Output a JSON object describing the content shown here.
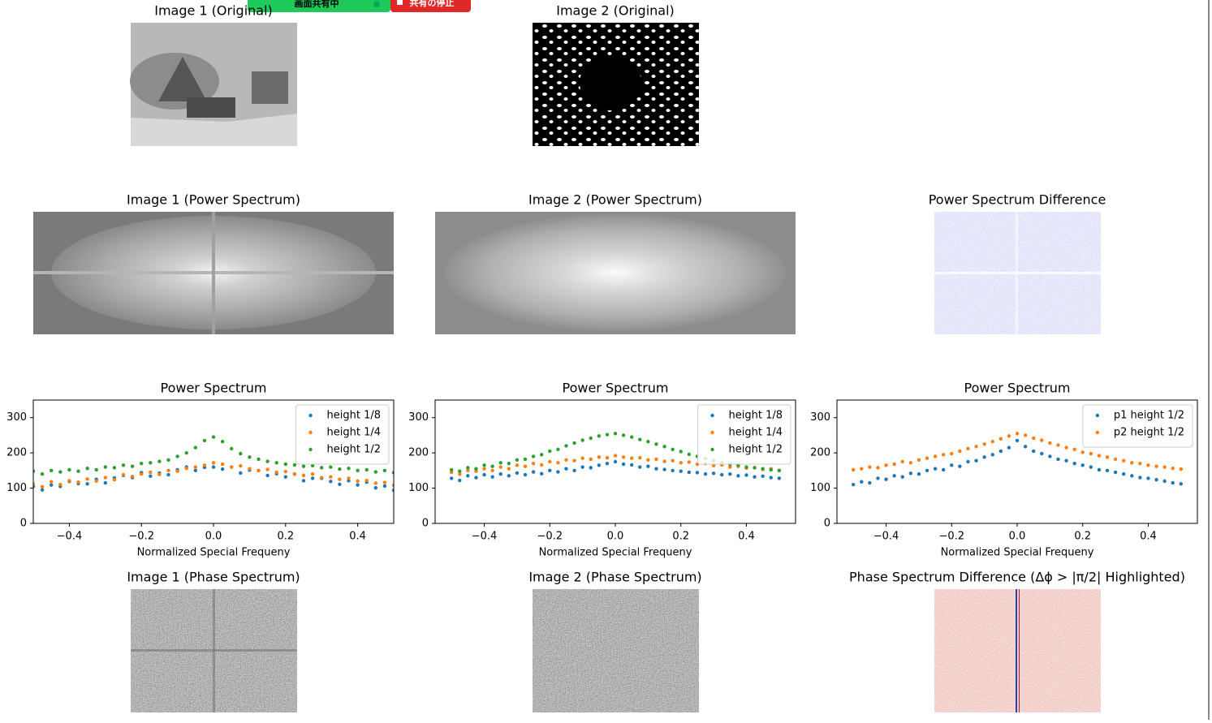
{
  "share_bar": {
    "status": "画面共有中",
    "stop": "共有の停止"
  },
  "panels": [
    "Image 1 (Original)",
    "Image 2 (Original)",
    "Image 1 (Power Spectrum)",
    "Image 2 (Power Spectrum)",
    "Power Spectrum Difference",
    "Image 1 (Phase Spectrum)",
    "Image 2 (Phase Spectrum)",
    "Phase Spectrum Difference (Δϕ > |π/2| Highlighted)"
  ],
  "chart_data": [
    {
      "type": "scatter",
      "title": "Power Spectrum",
      "xlabel": "Normalized Special Frequeny",
      "legend": "upper right",
      "xlim": [
        -0.5,
        0.5
      ],
      "ylim": [
        0,
        350
      ],
      "xticks": [
        {
          "value": -0.4,
          "label": "−0.4"
        },
        {
          "value": -0.2,
          "label": "−0.2"
        },
        {
          "value": 0,
          "label": "0.0"
        },
        0.2,
        0.4
      ],
      "yticks": [
        0,
        100,
        200,
        300
      ],
      "x": [
        -0.5,
        -0.475,
        -0.45,
        -0.425,
        -0.4,
        -0.375,
        -0.35,
        -0.325,
        -0.3,
        -0.275,
        -0.25,
        -0.225,
        -0.2,
        -0.175,
        -0.15,
        -0.125,
        -0.1,
        -0.075,
        -0.05,
        -0.025,
        0,
        0.025,
        0.05,
        0.075,
        0.1,
        0.125,
        0.15,
        0.175,
        0.2,
        0.225,
        0.25,
        0.275,
        0.3,
        0.325,
        0.35,
        0.375,
        0.4,
        0.425,
        0.45,
        0.475,
        0.5
      ],
      "series": [
        {
          "name": "height 1/8",
          "color": "#1f77b4",
          "values": [
            105,
            95,
            109,
            105,
            119,
            113,
            112,
            125,
            115,
            129,
            136,
            130,
            144,
            134,
            143,
            138,
            152,
            160,
            150,
            159,
            160,
            154,
            160,
            143,
            151,
            150,
            136,
            141,
            132,
            140,
            121,
            128,
            128,
            119,
            111,
            121,
            109,
            117,
            101,
            106,
            94
          ]
        },
        {
          "name": "height 1/4",
          "color": "#ff7f0e",
          "values": [
            112,
            104,
            118,
            110,
            121,
            117,
            126,
            120,
            130,
            124,
            138,
            133,
            140,
            145,
            139,
            150,
            148,
            156,
            160,
            165,
            172,
            168,
            160,
            163,
            155,
            150,
            153,
            145,
            147,
            140,
            136,
            140,
            130,
            132,
            125,
            128,
            120,
            122,
            114,
            116,
            108
          ]
        },
        {
          "name": "height 1/2",
          "color": "#2ca02c",
          "values": [
            148,
            140,
            150,
            146,
            152,
            148,
            156,
            152,
            160,
            158,
            165,
            162,
            170,
            172,
            176,
            180,
            190,
            200,
            215,
            235,
            245,
            232,
            212,
            198,
            188,
            182,
            176,
            172,
            168,
            166,
            162,
            164,
            158,
            160,
            154,
            156,
            150,
            152,
            146,
            150,
            144
          ]
        }
      ]
    },
    {
      "type": "scatter",
      "title": "Power Spectrum",
      "xlabel": "Normalized Special Frequeny",
      "legend": "upper right",
      "xlim": [
        -0.55,
        0.55
      ],
      "ylim": [
        0,
        350
      ],
      "xticks": [
        {
          "value": -0.4,
          "label": "−0.4"
        },
        {
          "value": -0.2,
          "label": "−0.2"
        },
        {
          "value": 0,
          "label": "0.0"
        },
        0.2,
        0.4
      ],
      "yticks": [
        0,
        100,
        200,
        300
      ],
      "x": [
        -0.5,
        -0.475,
        -0.45,
        -0.425,
        -0.4,
        -0.375,
        -0.35,
        -0.325,
        -0.3,
        -0.275,
        -0.25,
        -0.225,
        -0.2,
        -0.175,
        -0.15,
        -0.125,
        -0.1,
        -0.075,
        -0.05,
        -0.025,
        0,
        0.025,
        0.05,
        0.075,
        0.1,
        0.125,
        0.15,
        0.175,
        0.2,
        0.225,
        0.25,
        0.275,
        0.3,
        0.325,
        0.35,
        0.375,
        0.4,
        0.425,
        0.45,
        0.475,
        0.5
      ],
      "series": [
        {
          "name": "height 1/8",
          "color": "#1f77b4",
          "values": [
            128,
            122,
            135,
            130,
            138,
            132,
            140,
            135,
            143,
            138,
            146,
            141,
            150,
            146,
            155,
            150,
            160,
            158,
            165,
            170,
            175,
            168,
            166,
            160,
            162,
            155,
            153,
            150,
            148,
            145,
            144,
            140,
            142,
            138,
            140,
            135,
            137,
            132,
            134,
            130,
            128
          ]
        },
        {
          "name": "height 1/4",
          "color": "#ff7f0e",
          "values": [
            145,
            140,
            150,
            148,
            155,
            150,
            160,
            155,
            165,
            162,
            170,
            166,
            175,
            172,
            180,
            178,
            185,
            182,
            188,
            186,
            192,
            188,
            185,
            186,
            180,
            182,
            176,
            178,
            172,
            174,
            168,
            170,
            164,
            166,
            160,
            162,
            157,
            158,
            153,
            155,
            150
          ]
        },
        {
          "name": "height 1/2",
          "color": "#2ca02c",
          "values": [
            152,
            148,
            158,
            155,
            165,
            162,
            172,
            170,
            180,
            182,
            190,
            195,
            205,
            210,
            220,
            228,
            236,
            242,
            248,
            252,
            255,
            250,
            245,
            238,
            232,
            225,
            218,
            210,
            204,
            196,
            190,
            184,
            178,
            172,
            168,
            165,
            160,
            158,
            155,
            152,
            150
          ]
        }
      ]
    },
    {
      "type": "scatter",
      "title": "Power Spectrum",
      "xlabel": "Normalized Special Frequeny",
      "legend": "upper right",
      "xlim": [
        -0.55,
        0.55
      ],
      "ylim": [
        0,
        350
      ],
      "xticks": [
        {
          "value": -0.4,
          "label": "−0.4"
        },
        {
          "value": -0.2,
          "label": "−0.2"
        },
        {
          "value": 0,
          "label": "0.0"
        },
        0.2,
        0.4
      ],
      "yticks": [
        0,
        100,
        200,
        300
      ],
      "x": [
        -0.5,
        -0.475,
        -0.45,
        -0.425,
        -0.4,
        -0.375,
        -0.35,
        -0.325,
        -0.3,
        -0.275,
        -0.25,
        -0.225,
        -0.2,
        -0.175,
        -0.15,
        -0.125,
        -0.1,
        -0.075,
        -0.05,
        -0.025,
        0,
        0.025,
        0.05,
        0.075,
        0.1,
        0.125,
        0.15,
        0.175,
        0.2,
        0.225,
        0.25,
        0.275,
        0.3,
        0.325,
        0.35,
        0.375,
        0.4,
        0.425,
        0.45,
        0.475,
        0.5
      ],
      "series": [
        {
          "name": "p1 height 1/2",
          "color": "#1f77b4",
          "values": [
            110,
            118,
            115,
            128,
            125,
            135,
            132,
            142,
            140,
            150,
            155,
            152,
            165,
            162,
            175,
            178,
            188,
            195,
            205,
            215,
            235,
            218,
            205,
            198,
            190,
            182,
            178,
            170,
            165,
            160,
            152,
            150,
            145,
            140,
            135,
            130,
            128,
            124,
            120,
            115,
            112
          ]
        },
        {
          "name": "p2 height 1/2",
          "color": "#ff7f0e",
          "values": [
            152,
            155,
            160,
            158,
            165,
            168,
            175,
            172,
            180,
            185,
            190,
            195,
            198,
            205,
            212,
            218,
            225,
            232,
            240,
            248,
            255,
            250,
            242,
            236,
            228,
            222,
            215,
            210,
            202,
            198,
            192,
            188,
            182,
            178,
            172,
            170,
            165,
            162,
            160,
            156,
            154
          ]
        }
      ]
    }
  ]
}
